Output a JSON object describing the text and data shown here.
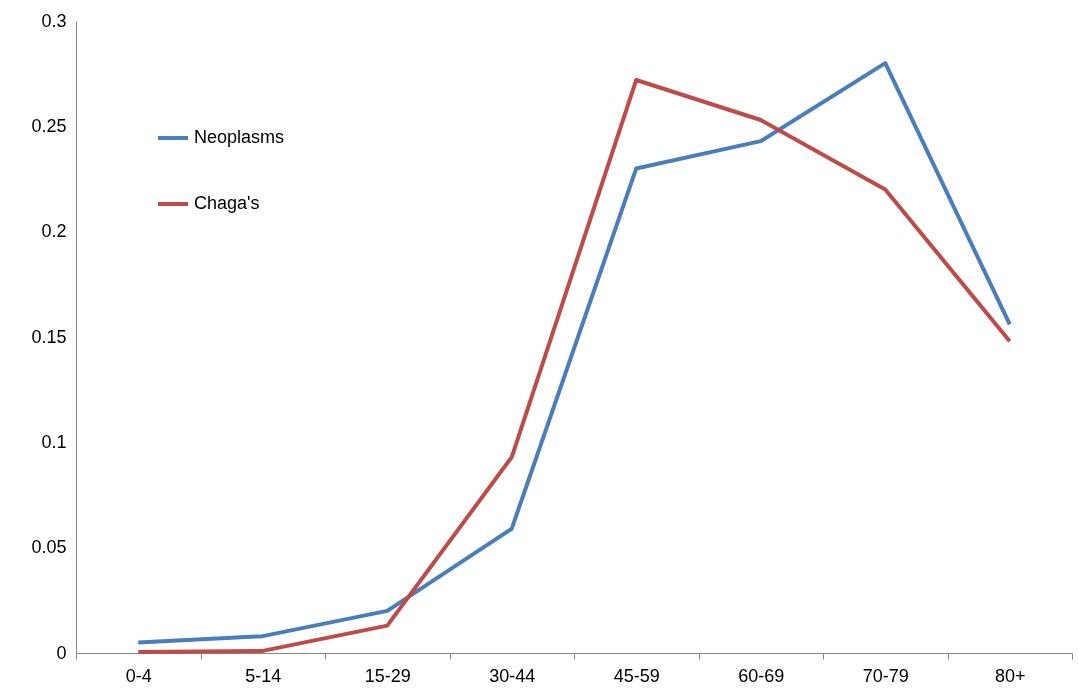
{
  "chart_data": {
    "type": "line",
    "categories": [
      "0-4",
      "5-14",
      "15-29",
      "30-44",
      "45-59",
      "60-69",
      "70-79",
      "80+"
    ],
    "series": [
      {
        "name": "Neoplasms",
        "color": "#4a7ebb",
        "values": [
          0.005,
          0.008,
          0.02,
          0.059,
          0.23,
          0.243,
          0.28,
          0.156
        ]
      },
      {
        "name": "Chaga's",
        "color": "#be4b48",
        "values": [
          0.0005,
          0.001,
          0.013,
          0.093,
          0.272,
          0.253,
          0.22,
          0.148
        ]
      }
    ],
    "ylim": [
      0,
      0.3
    ],
    "yticks": [
      0,
      0.05,
      0.1,
      0.15,
      0.2,
      0.25,
      0.3
    ],
    "grid": false,
    "legend": "top left",
    "marker": "none",
    "line_style": "solid"
  }
}
